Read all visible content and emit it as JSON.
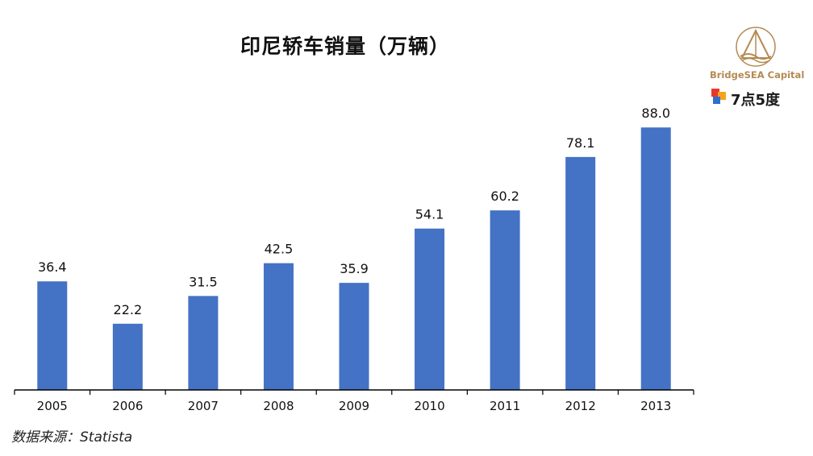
{
  "title": "印尼轿车销量（万辆）",
  "source": "数据来源：Statista",
  "logos": {
    "brand": "BridgeSEA Capital",
    "secondary": "7点5度"
  },
  "colors": {
    "bar": "#4472c4",
    "axis": "#000000"
  },
  "chart_data": {
    "type": "bar",
    "title": "印尼轿车销量（万辆）",
    "categories": [
      "2005",
      "2006",
      "2007",
      "2008",
      "2009",
      "2010",
      "2011",
      "2012",
      "2013"
    ],
    "values": [
      36.4,
      22.2,
      31.5,
      42.5,
      35.9,
      54.1,
      60.2,
      78.1,
      88.0
    ],
    "value_labels": [
      "36.4",
      "22.2",
      "31.5",
      "42.5",
      "35.9",
      "54.1",
      "60.2",
      "78.1",
      "88.0"
    ],
    "xlabel": "",
    "ylabel": "",
    "ylim": [
      0,
      94
    ],
    "grid": false,
    "legend": "none"
  }
}
